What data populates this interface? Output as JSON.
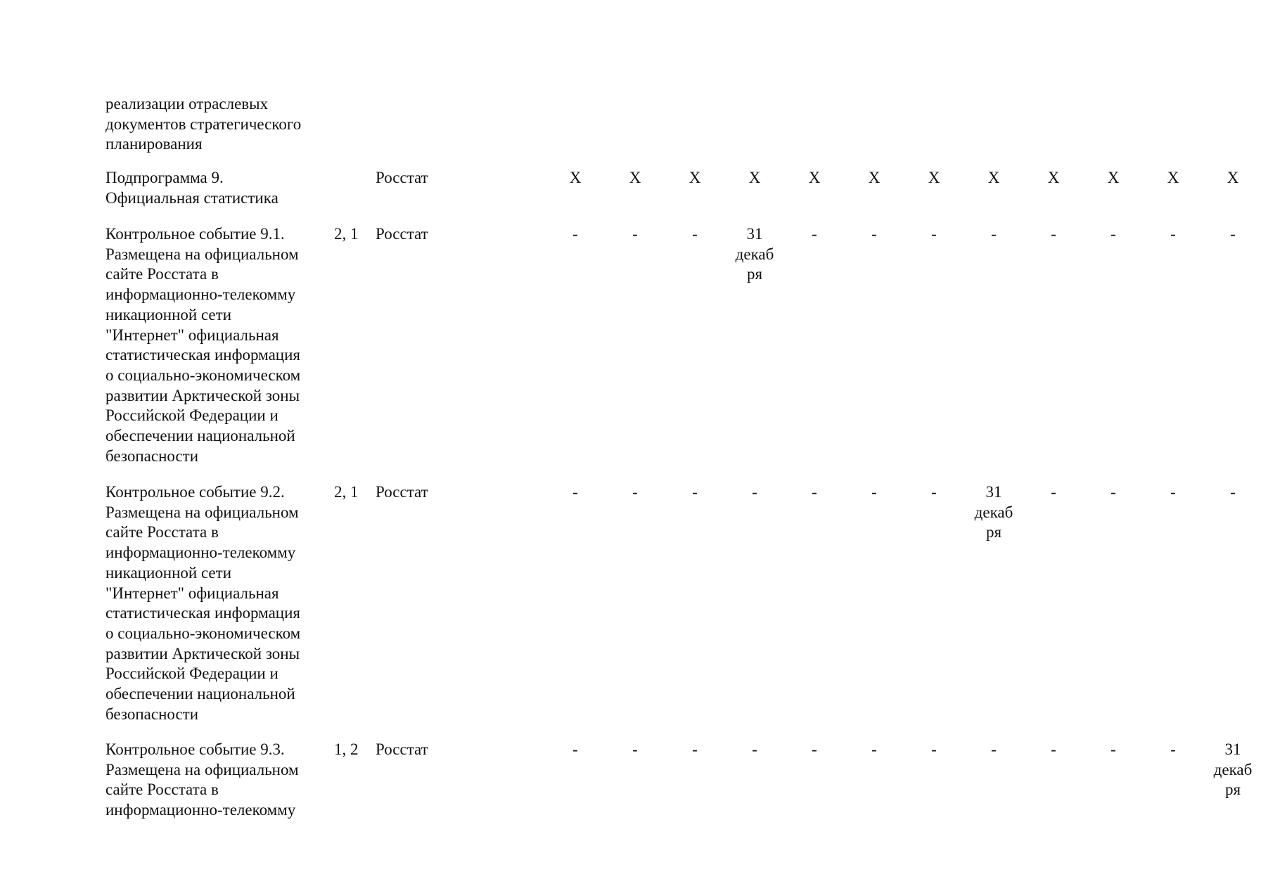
{
  "rows": [
    {
      "desc": [
        "реализации отраслевых",
        "документов стратегического",
        "планирования"
      ],
      "ref": "",
      "executor": "",
      "cells": []
    },
    {
      "desc": [
        "Подпрограмма 9.",
        "Официальная статистика"
      ],
      "ref": "",
      "executor": "Росстат",
      "cells": [
        [
          "X"
        ],
        [
          "X"
        ],
        [
          "X"
        ],
        [
          "X"
        ],
        [
          "X"
        ],
        [
          "X"
        ],
        [
          "X"
        ],
        [
          "X"
        ],
        [
          "X"
        ],
        [
          "X"
        ],
        [
          "X"
        ],
        [
          "X"
        ]
      ]
    },
    {
      "desc": [
        "Контрольное событие 9.1.",
        "Размещена на официальном",
        "сайте Росстата в",
        "информационно-телекомму",
        "никационной сети",
        "\"Интернет\" официальная",
        "статистическая информация",
        "о социально-экономическом",
        "развитии Арктической зоны",
        "Российской Федерации и",
        "обеспечении национальной",
        "безопасности"
      ],
      "ref": "2, 1",
      "executor": "Росстат",
      "cells": [
        [
          "-"
        ],
        [
          "-"
        ],
        [
          "-"
        ],
        [
          "31",
          "декаб",
          "ря"
        ],
        [
          "-"
        ],
        [
          "-"
        ],
        [
          "-"
        ],
        [
          "-"
        ],
        [
          "-"
        ],
        [
          "-"
        ],
        [
          "-"
        ],
        [
          "-"
        ]
      ]
    },
    {
      "desc": [
        "Контрольное событие 9.2.",
        "Размещена на официальном",
        "сайте Росстата в",
        "информационно-телекомму",
        "никационной сети",
        "\"Интернет\" официальная",
        "статистическая информация",
        "о социально-экономическом",
        "развитии Арктической зоны",
        "Российской Федерации и",
        "обеспечении национальной",
        "безопасности"
      ],
      "ref": "2, 1",
      "executor": "Росстат",
      "cells": [
        [
          "-"
        ],
        [
          "-"
        ],
        [
          "-"
        ],
        [
          "-"
        ],
        [
          "-"
        ],
        [
          "-"
        ],
        [
          "-"
        ],
        [
          "31",
          "декаб",
          "ря"
        ],
        [
          "-"
        ],
        [
          "-"
        ],
        [
          "-"
        ],
        [
          "-"
        ]
      ]
    },
    {
      "desc": [
        "Контрольное событие 9.3.",
        "Размещена на официальном",
        "сайте Росстата в",
        "информационно-телекомму"
      ],
      "ref": "1, 2",
      "executor": "Росстат",
      "cells": [
        [
          "-"
        ],
        [
          "-"
        ],
        [
          "-"
        ],
        [
          "-"
        ],
        [
          "-"
        ],
        [
          "-"
        ],
        [
          "-"
        ],
        [
          "-"
        ],
        [
          "-"
        ],
        [
          "-"
        ],
        [
          "-"
        ],
        [
          "31",
          "декаб",
          "ря"
        ]
      ]
    }
  ]
}
